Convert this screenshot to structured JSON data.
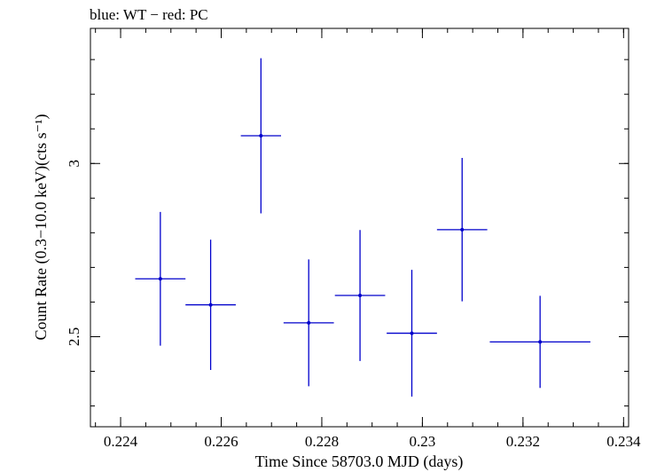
{
  "chart_data": {
    "type": "scatter",
    "title": "blue: WT − red: PC",
    "xlabel": "Time Since 58703.0 MJD (days)",
    "ylabel": "Count Rate (0.3−10.0 keV)(cts s⁻¹)",
    "xlim": [
      0.2234,
      0.2341
    ],
    "ylim": [
      2.24,
      3.39
    ],
    "x_ticks": [
      {
        "value": 0.224,
        "label": "0.224"
      },
      {
        "value": 0.226,
        "label": "0.226"
      },
      {
        "value": 0.228,
        "label": "0.228"
      },
      {
        "value": 0.23,
        "label": "0.23"
      },
      {
        "value": 0.232,
        "label": "0.232"
      },
      {
        "value": 0.234,
        "label": "0.234"
      }
    ],
    "x_minor_step": 0.0005,
    "y_ticks": [
      {
        "value": 2.5,
        "label": "2.5"
      },
      {
        "value": 3.0,
        "label": "3"
      }
    ],
    "y_minor_step": 0.1,
    "grid": false,
    "series": [
      {
        "name": "WT",
        "color": "#0000cc",
        "points": [
          {
            "x": 0.22479,
            "xerr": 0.0005,
            "y": 2.667,
            "yerr": 0.193
          },
          {
            "x": 0.22579,
            "xerr": 0.0005,
            "y": 2.592,
            "yerr": 0.188
          },
          {
            "x": 0.22679,
            "xerr": 0.0004,
            "y": 3.08,
            "yerr": 0.224
          },
          {
            "x": 0.22774,
            "xerr": 0.0005,
            "y": 2.54,
            "yerr": 0.183
          },
          {
            "x": 0.22876,
            "xerr": 0.0005,
            "y": 2.619,
            "yerr": 0.189
          },
          {
            "x": 0.22979,
            "xerr": 0.0005,
            "y": 2.51,
            "yerr": 0.183
          },
          {
            "x": 0.23079,
            "xerr": 0.0005,
            "y": 2.809,
            "yerr": 0.207
          },
          {
            "x": 0.23234,
            "xerr": 0.001,
            "y": 2.485,
            "yerr": 0.133
          }
        ]
      }
    ]
  }
}
